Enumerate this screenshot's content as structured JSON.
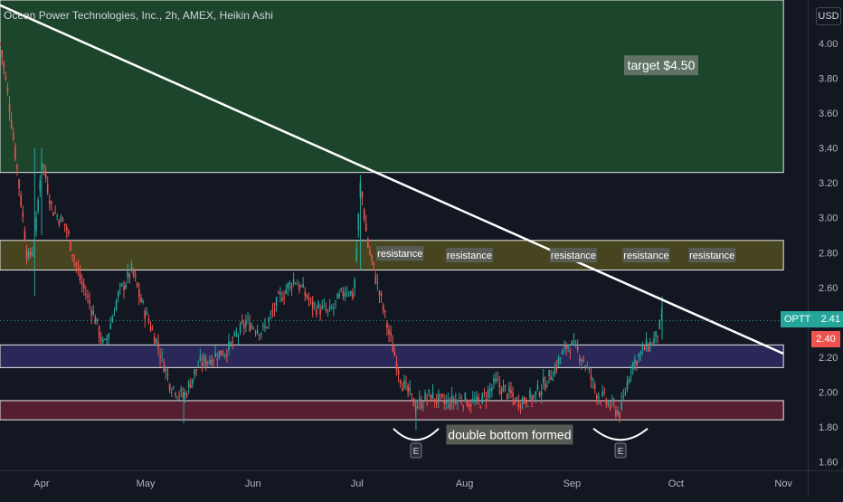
{
  "window": {
    "legend": "Ocean Power Technologies, Inc., 2h, AMEX, Heikin Ashi",
    "currency": "USD"
  },
  "price_labels": {
    "ticker": "OPTT",
    "last_price": "2.41",
    "prev_price": "2.40"
  },
  "colors": {
    "background": "#131722",
    "up_candle": "#26a69a",
    "down_candle": "#ef5350",
    "trendline": "#ffffff",
    "target_zone": "#1f4d2e",
    "resistance_zone": "#4d4a1f",
    "support_zone_upper": "#2e2a5e",
    "support_zone_lower": "#5e1f33",
    "ticker_badge": "#26a69a",
    "prev_badge": "#ef5350"
  },
  "annotations": {
    "target": "target $4.50",
    "resistance": "resistance",
    "double_bottom": "double bottom formed",
    "earnings_marker": "E"
  },
  "chart_data": {
    "type": "candlestick",
    "title": "Ocean Power Technologies, Inc., 2h, AMEX, Heikin Ashi",
    "xlabel": "",
    "ylabel": "",
    "x_ticks": [
      "Apr",
      "May",
      "Jun",
      "Jul",
      "Aug",
      "Sep",
      "Oct",
      "Nov"
    ],
    "x_tick_dates": [
      "2021-04-01",
      "2021-05-01",
      "2021-06-01",
      "2021-07-01",
      "2021-08-01",
      "2021-09-01",
      "2021-10-01",
      "2021-11-01"
    ],
    "y_ticks": [
      1.6,
      1.8,
      2.0,
      2.2,
      2.4,
      2.6,
      2.8,
      3.0,
      3.2,
      3.4,
      3.6,
      3.8,
      4.0
    ],
    "y_tick_labels": [
      "1.60",
      "1.80",
      "2.00",
      "2.20",
      "2.40",
      "2.60",
      "2.80",
      "3.00",
      "3.20",
      "3.40",
      "3.60",
      "3.80",
      "4.00"
    ],
    "ylim": [
      1.55,
      4.25
    ],
    "xlim": [
      "2021-03-20",
      "2021-11-08"
    ],
    "grid": false,
    "last_price": 2.41,
    "price_path": [
      [
        "2021-03-20",
        4.0
      ],
      [
        "2021-03-23",
        3.6
      ],
      [
        "2021-03-26",
        3.1
      ],
      [
        "2021-03-28",
        2.75
      ],
      [
        "2021-03-30",
        2.85
      ],
      [
        "2021-04-01",
        3.35
      ],
      [
        "2021-04-04",
        3.05
      ],
      [
        "2021-04-08",
        2.95
      ],
      [
        "2021-04-12",
        2.65
      ],
      [
        "2021-04-16",
        2.45
      ],
      [
        "2021-04-19",
        2.25
      ],
      [
        "2021-04-23",
        2.55
      ],
      [
        "2021-04-27",
        2.7
      ],
      [
        "2021-04-30",
        2.5
      ],
      [
        "2021-05-04",
        2.3
      ],
      [
        "2021-05-08",
        2.05
      ],
      [
        "2021-05-12",
        1.97
      ],
      [
        "2021-05-16",
        2.15
      ],
      [
        "2021-05-20",
        2.2
      ],
      [
        "2021-05-25",
        2.25
      ],
      [
        "2021-05-30",
        2.4
      ],
      [
        "2021-06-04",
        2.35
      ],
      [
        "2021-06-09",
        2.55
      ],
      [
        "2021-06-13",
        2.65
      ],
      [
        "2021-06-18",
        2.5
      ],
      [
        "2021-06-23",
        2.45
      ],
      [
        "2021-06-28",
        2.6
      ],
      [
        "2021-06-30",
        2.55
      ],
      [
        "2021-07-02",
        3.2
      ],
      [
        "2021-07-04",
        2.85
      ],
      [
        "2021-07-07",
        2.6
      ],
      [
        "2021-07-10",
        2.35
      ],
      [
        "2021-07-14",
        2.05
      ],
      [
        "2021-07-18",
        1.92
      ],
      [
        "2021-07-22",
        1.98
      ],
      [
        "2021-07-26",
        1.93
      ],
      [
        "2021-07-31",
        1.96
      ],
      [
        "2021-08-05",
        1.93
      ],
      [
        "2021-08-10",
        2.05
      ],
      [
        "2021-08-16",
        1.95
      ],
      [
        "2021-08-21",
        1.97
      ],
      [
        "2021-08-26",
        2.1
      ],
      [
        "2021-08-31",
        2.28
      ],
      [
        "2021-09-04",
        2.2
      ],
      [
        "2021-09-08",
        2.0
      ],
      [
        "2021-09-12",
        1.92
      ],
      [
        "2021-09-15",
        1.88
      ],
      [
        "2021-09-18",
        2.15
      ],
      [
        "2021-09-22",
        2.25
      ],
      [
        "2021-09-25",
        2.3
      ],
      [
        "2021-09-27",
        2.41
      ]
    ],
    "zones": [
      {
        "name": "target",
        "top": 4.25,
        "bottom": 3.26,
        "start": "2021-03-20",
        "end": "2021-11-01"
      },
      {
        "name": "resistance",
        "top": 2.87,
        "bottom": 2.7,
        "start": "2021-03-20",
        "end": "2021-11-01"
      },
      {
        "name": "support-upper",
        "top": 2.27,
        "bottom": 2.14,
        "start": "2021-03-20",
        "end": "2021-11-01"
      },
      {
        "name": "support-lower",
        "top": 1.95,
        "bottom": 1.84,
        "start": "2021-03-20",
        "end": "2021-11-01"
      }
    ],
    "trendline": {
      "start": [
        "2021-03-20",
        4.22
      ],
      "end": [
        "2021-11-01",
        2.22
      ]
    }
  }
}
